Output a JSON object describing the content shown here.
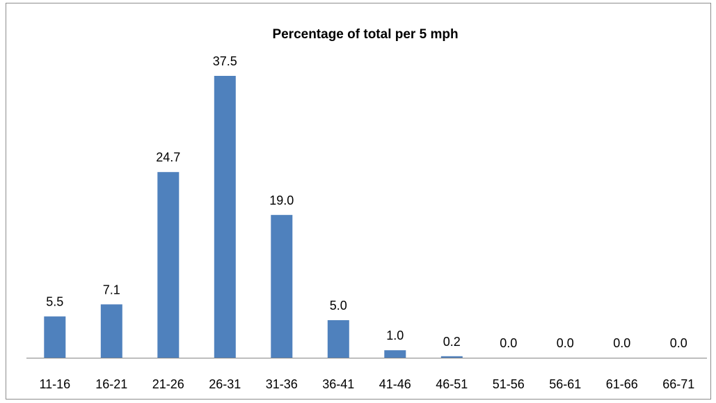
{
  "chart_data": {
    "type": "bar",
    "title": "Percentage of total per 5 mph",
    "xlabel": "",
    "ylabel": "",
    "categories": [
      "11-16",
      "16-21",
      "21-26",
      "26-31",
      "31-36",
      "36-41",
      "41-46",
      "46-51",
      "51-56",
      "56-61",
      "61-66",
      "66-71"
    ],
    "values": [
      5.5,
      7.1,
      24.7,
      37.5,
      19.0,
      5.0,
      1.0,
      0.2,
      0.0,
      0.0,
      0.0,
      0.0
    ],
    "value_labels": [
      "5.5",
      "7.1",
      "24.7",
      "37.5",
      "19.0",
      "5.0",
      "1.0",
      "0.2",
      "0.0",
      "0.0",
      "0.0",
      "0.0"
    ],
    "ylim": [
      0,
      40
    ],
    "grid": false,
    "legend": "none",
    "bar_color": "#4f81bd",
    "axis_color": "#868686"
  }
}
